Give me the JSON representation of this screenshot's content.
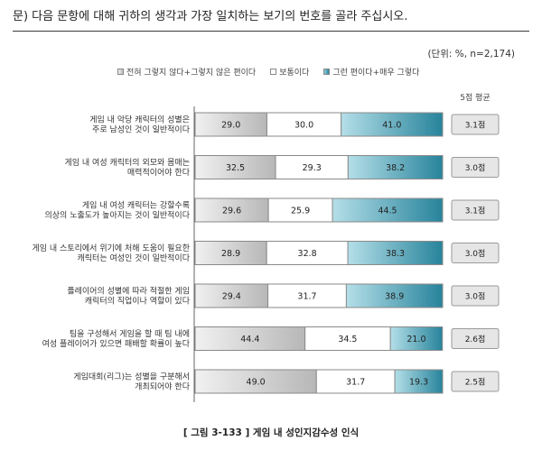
{
  "question": "문) 다음 문항에 대해 귀하의 생각과 가장 일치하는 보기의 번호를 골라 주십시오.",
  "unit": "(단위: %, n=2,174)",
  "score_header": "5점 평균",
  "caption": "[ 그림 3-133 ] 게임 내 성인지감수성 인식",
  "colors": {
    "disagree_start": "#f1f1f1",
    "disagree_end": "#b7b7b7",
    "neutral": "#ffffff",
    "agree_start": "#b4dfe8",
    "agree_end": "#27839b",
    "border": "#8a8a8a"
  },
  "chart_data": {
    "type": "bar",
    "orientation": "horizontal",
    "stacked": true,
    "categories": [
      [
        "게임 내 악당 캐릭터의 성별은",
        "주로 남성인 것이 일반적이다"
      ],
      [
        "게임 내 여성 캐릭터의 외모와 몸매는",
        "매력적이어야 한다"
      ],
      [
        "게임 내 여성 캐릭터는 강할수록",
        "의상의 노출도가 높아지는 것이 일반적이다"
      ],
      [
        "게임 내 스토리에서 위기에 처해 도움이 필요한",
        "캐릭터는 여성인 것이 일반적이다"
      ],
      [
        "플레이어의 성별에 따라 적절한 게임",
        "캐릭터의 직업이나 역할이 있다"
      ],
      [
        "팀을 구성해서 게임을 할 때 팀 내에",
        "여성 플레이어가 있으면 패배할 확률이 높다"
      ],
      [
        "게임대회(리그)는 성별을 구분해서",
        "개최되어야 한다"
      ]
    ],
    "series": [
      {
        "name": "전혀 그렇지 않다+그렇지 않은 편이다",
        "values": [
          29.0,
          32.5,
          29.6,
          28.9,
          29.4,
          44.4,
          49.0
        ]
      },
      {
        "name": "보통이다",
        "values": [
          30.0,
          29.3,
          25.9,
          32.8,
          31.7,
          34.5,
          31.7
        ]
      },
      {
        "name": "그런 편이다+매우 그렇다",
        "values": [
          41.0,
          38.2,
          44.5,
          38.3,
          38.9,
          21.0,
          19.3
        ]
      }
    ],
    "value_labels": {
      "s0": [
        "29.0",
        "32.5",
        "29.6",
        "28.9",
        "29.4",
        "44.4",
        "49.0"
      ],
      "s1": [
        "30.0",
        "29.3",
        "25.9",
        "32.8",
        "31.7",
        "34.5",
        "31.7"
      ],
      "s2": [
        "41.0",
        "38.2",
        "44.5",
        "38.3",
        "38.9",
        "21.0",
        "19.3"
      ]
    },
    "mean_scores": [
      "3.1점",
      "3.0점",
      "3.1점",
      "3.0점",
      "3.0점",
      "2.6점",
      "2.5점"
    ],
    "xlim": [
      0,
      100
    ],
    "legend_position": "top",
    "grid": false
  }
}
